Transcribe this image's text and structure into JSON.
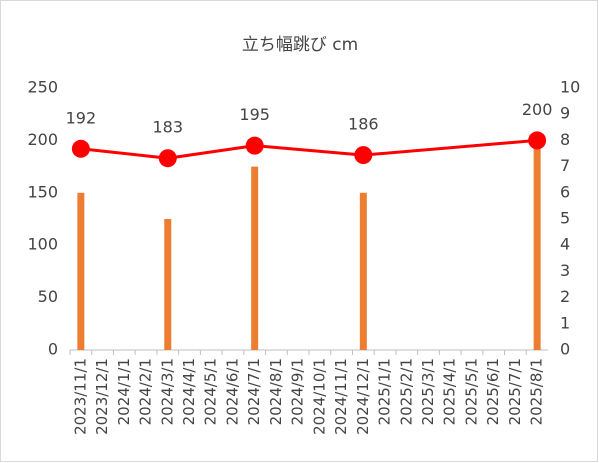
{
  "chart_data": {
    "type": "bar_line",
    "title": "立ち幅跳び cm",
    "categories": [
      "2023/11/1",
      "2023/12/1",
      "2024/1/1",
      "2024/2/1",
      "2024/3/1",
      "2024/4/1",
      "2024/5/1",
      "2024/6/1",
      "2024/7/1",
      "2024/8/1",
      "2024/9/1",
      "2024/10/1",
      "2024/11/1",
      "2024/12/1",
      "2025/1/1",
      "2025/2/1",
      "2025/3/1",
      "2025/4/1",
      "2025/5/1",
      "2025/6/1",
      "2025/7/1",
      "2025/8/1"
    ],
    "series": [
      {
        "kind": "line",
        "color": "#ff0000",
        "values": [
          192,
          null,
          null,
          null,
          183,
          null,
          null,
          null,
          195,
          null,
          null,
          null,
          null,
          186,
          null,
          null,
          null,
          null,
          null,
          null,
          null,
          200
        ]
      },
      {
        "kind": "bar",
        "color": "#ed7d31",
        "axis": "y2",
        "values": [
          6,
          null,
          null,
          null,
          5,
          null,
          null,
          null,
          7,
          null,
          null,
          null,
          null,
          6,
          null,
          null,
          null,
          null,
          null,
          null,
          null,
          8
        ]
      }
    ],
    "ylim": [
      0,
      250
    ],
    "yticks": [
      0,
      50,
      100,
      150,
      200,
      250
    ],
    "y2lim": [
      0,
      10
    ],
    "y2ticks": [
      0,
      1,
      2,
      3,
      4,
      5,
      6,
      7,
      8,
      9,
      10
    ]
  }
}
